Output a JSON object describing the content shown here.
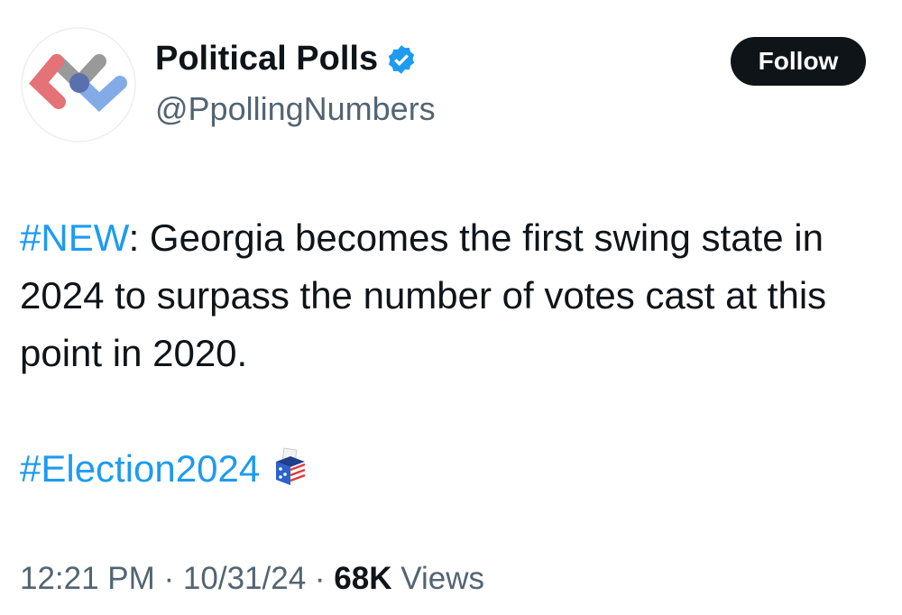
{
  "account": {
    "name": "Political Polls",
    "handle": "@PpollingNumbers",
    "verified": true,
    "verified_color": "#1d9bf0"
  },
  "follow_label": "Follow",
  "tweet": {
    "hashtag_new": "#NEW",
    "text": ": Georgia becomes the first swing state in 2024 to surpass the number of votes cast at this point in 2020.",
    "hashtag_election": "#Election2024",
    "emoji": "ballot-box-icon"
  },
  "meta": {
    "time": "12:21 PM",
    "sep": " · ",
    "date": "10/31/24",
    "views_count": "68K",
    "views_label": "Views"
  }
}
